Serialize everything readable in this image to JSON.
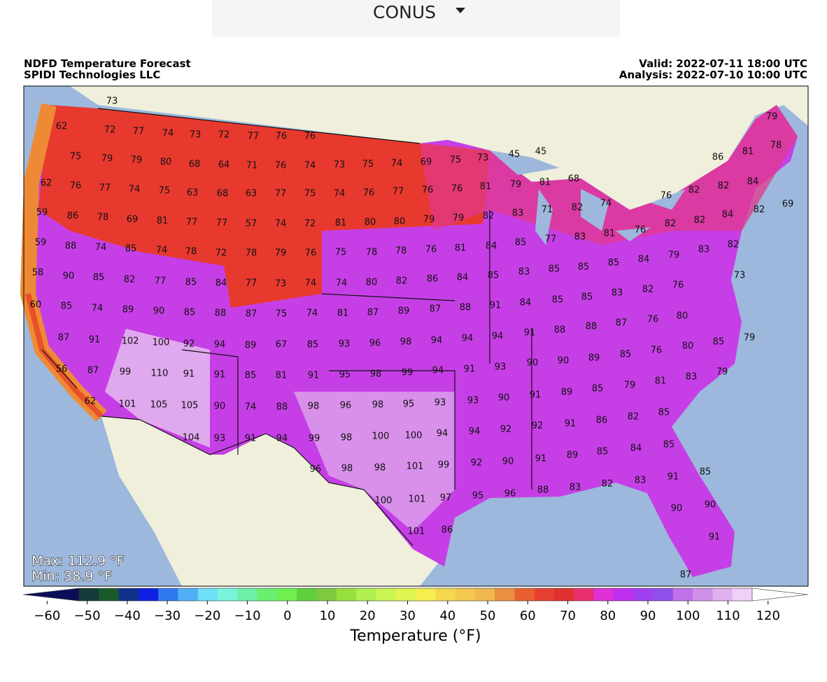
{
  "dropdown": {
    "label": "CONUS"
  },
  "header": {
    "title": "NDFD Temperature Forecast",
    "source": "SPIDI Technologies LLC",
    "valid": "Valid: 2022-07-11 18:00 UTC",
    "analysis": "Analysis: 2022-07-10 10:00 UTC"
  },
  "map": {
    "max": "Max: 112.9 °F",
    "min": "Min: 38.9 °F",
    "labels": [
      73,
      62,
      72,
      77,
      74,
      73,
      72,
      77,
      76,
      76,
      75,
      79,
      79,
      80,
      68,
      64,
      71,
      76,
      74,
      73,
      75,
      74,
      69,
      75,
      73,
      45,
      45,
      62,
      76,
      77,
      74,
      75,
      63,
      68,
      63,
      77,
      75,
      74,
      76,
      77,
      76,
      76,
      81,
      79,
      81,
      68,
      76,
      82,
      82,
      84,
      59,
      86,
      78,
      69,
      81,
      77,
      77,
      57,
      74,
      72,
      81,
      80,
      80,
      79,
      79,
      82,
      83,
      71,
      82,
      74,
      84,
      82,
      69,
      86,
      81,
      78,
      79,
      59,
      88,
      74,
      85,
      74,
      78,
      72,
      78,
      79,
      76,
      75,
      78,
      78,
      76,
      81,
      84,
      85,
      77,
      83,
      81,
      76,
      82,
      82,
      58,
      90,
      85,
      82,
      77,
      85,
      84,
      77,
      73,
      74,
      74,
      80,
      82,
      86,
      84,
      85,
      83,
      85,
      85,
      85,
      84,
      79,
      83,
      82,
      73,
      60,
      85,
      74,
      89,
      90,
      85,
      88,
      87,
      75,
      74,
      81,
      87,
      89,
      87,
      88,
      91,
      84,
      85,
      85,
      83,
      82,
      76,
      87,
      91,
      102,
      100,
      92,
      94,
      89,
      67,
      85,
      93,
      96,
      98,
      94,
      94,
      94,
      91,
      88,
      88,
      87,
      76,
      80,
      56,
      87,
      99,
      110,
      91,
      91,
      85,
      81,
      91,
      95,
      98,
      99,
      94,
      91,
      93,
      90,
      90,
      89,
      85,
      76,
      80,
      85,
      79,
      62,
      101,
      105,
      105,
      90,
      74,
      88,
      98,
      96,
      98,
      95,
      93,
      93,
      90,
      91,
      89,
      85,
      79,
      81,
      83,
      79,
      104,
      93,
      91,
      94,
      99,
      98,
      100,
      100,
      94,
      94,
      92,
      92,
      91,
      86,
      82,
      85,
      96,
      98,
      98,
      101,
      99,
      92,
      90,
      91,
      89,
      85,
      84,
      85,
      100,
      101,
      97,
      95,
      96,
      88,
      83,
      82,
      83,
      91,
      85,
      101,
      86,
      90,
      90,
      91,
      87
    ]
  },
  "colorbar": {
    "label": "Temperature (°F)",
    "lim": [
      -66,
      130
    ],
    "ticks": [
      {
        "value": -60,
        "label": "−60"
      },
      {
        "value": -50,
        "label": "−50"
      },
      {
        "value": -40,
        "label": "−40"
      },
      {
        "value": -30,
        "label": "−30"
      },
      {
        "value": -20,
        "label": "−20"
      },
      {
        "value": -10,
        "label": "−10"
      },
      0,
      10,
      20,
      30,
      40,
      50,
      60,
      70,
      80,
      90,
      100,
      110,
      120
    ],
    "under": "#0b0f5a",
    "over": "#ffffff",
    "colors": [
      "#153a3a",
      "#1a5a2a",
      "#10308a",
      "#1020e0",
      "#2f7af0",
      "#50b0f5",
      "#6ee0f5",
      "#78f5d8",
      "#6ef0a8",
      "#6af070",
      "#70f050",
      "#60d040",
      "#80c840",
      "#98e040",
      "#b0f050",
      "#c8f550",
      "#e0f550",
      "#f5f050",
      "#f5d850",
      "#f5c850",
      "#f0b850",
      "#e89040",
      "#e86030",
      "#e84030",
      "#e03030",
      "#e83070",
      "#e030d8",
      "#c030f0",
      "#a040f0",
      "#9050e8",
      "#c070e8",
      "#d090e8",
      "#e0b0f0",
      "#f0d0f8"
    ]
  }
}
